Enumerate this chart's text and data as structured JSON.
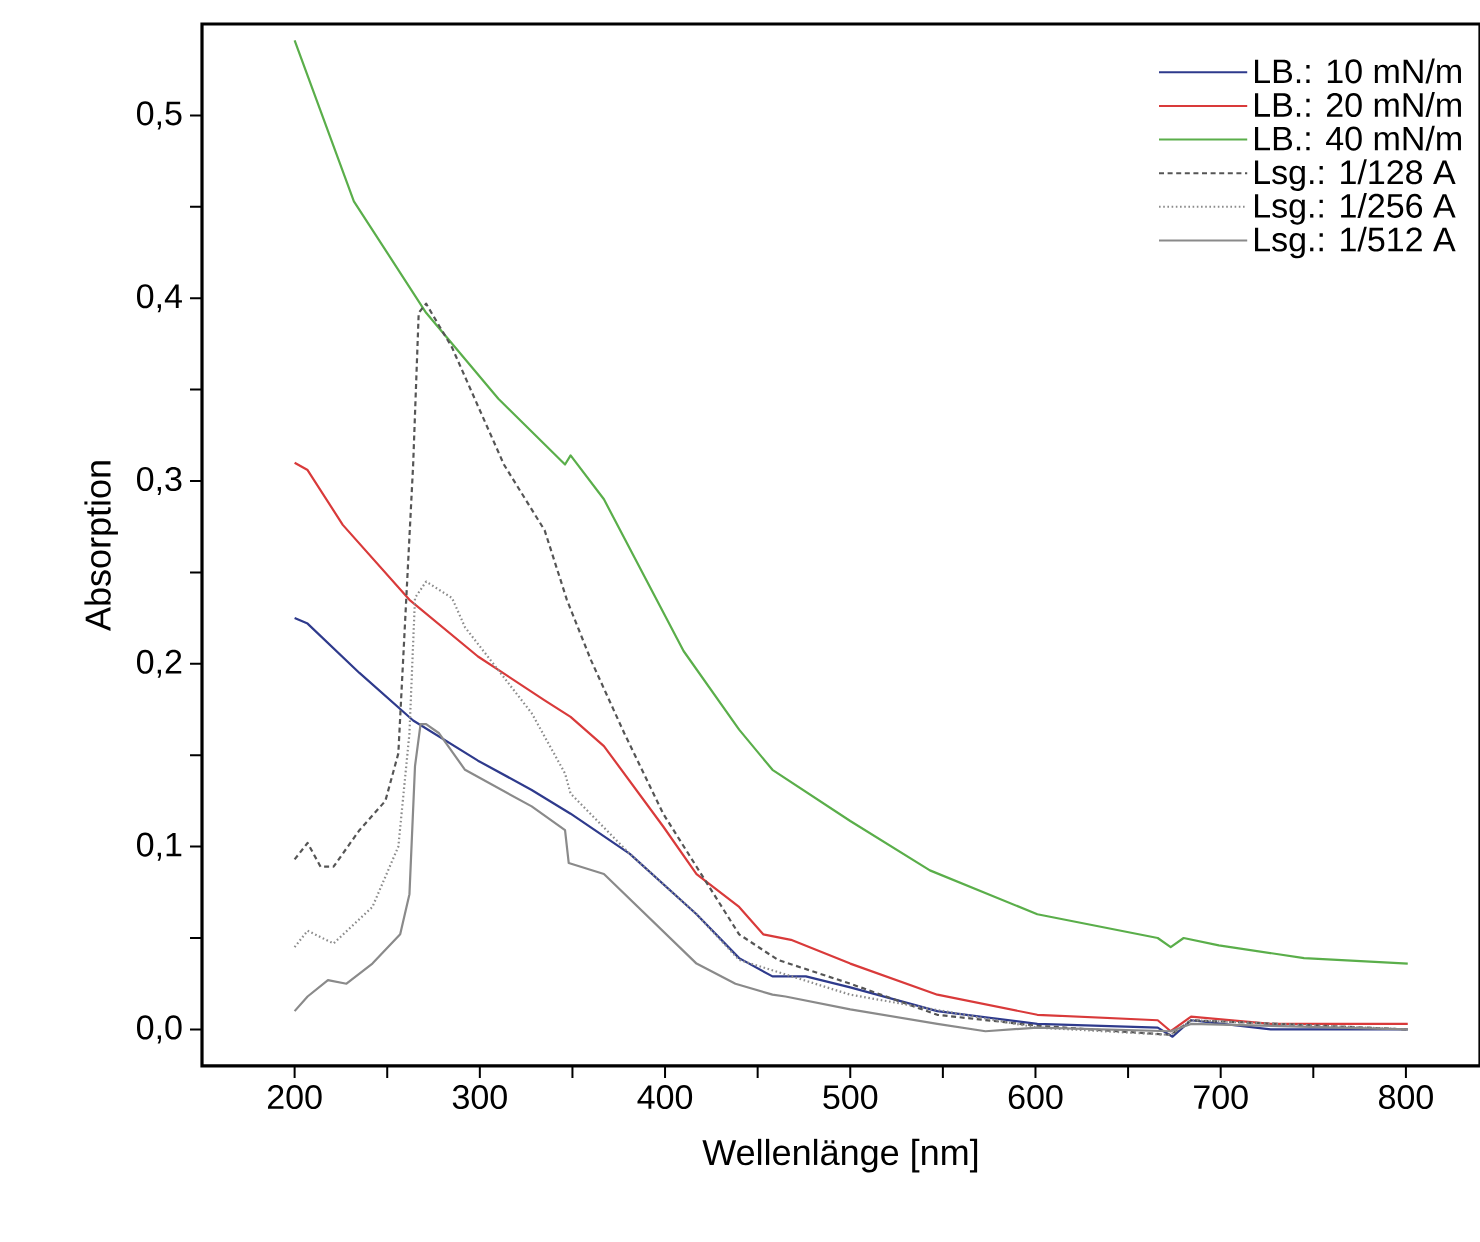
{
  "chart_data": {
    "type": "line",
    "xlabel": "Wellenlänge [nm]",
    "ylabel": "Absorption",
    "xlim": [
      150,
      840
    ],
    "ylim": [
      -0.02,
      0.55
    ],
    "xticks": [
      200,
      {
        "value": 250,
        "label": null
      },
      300,
      {
        "value": 350,
        "label": null
      },
      400,
      {
        "value": 450,
        "label": null
      },
      500,
      {
        "value": 550,
        "label": null
      },
      600,
      {
        "value": 650,
        "label": null
      },
      700,
      {
        "value": 750,
        "label": null
      },
      800
    ],
    "yticks": [
      {
        "value": 0,
        "label": "0,0"
      },
      {
        "value": 0.05,
        "label": null
      },
      {
        "value": 0.1,
        "label": "0,1"
      },
      {
        "value": 0.15,
        "label": null
      },
      {
        "value": 0.2,
        "label": "0,2"
      },
      {
        "value": 0.25,
        "label": null
      },
      {
        "value": 0.3,
        "label": "0,3"
      },
      {
        "value": 0.35,
        "label": null
      },
      {
        "value": 0.4,
        "label": "0,4"
      },
      {
        "value": 0.45,
        "label": null
      },
      {
        "value": 0.5,
        "label": "0,5"
      }
    ],
    "grid": false,
    "legend": "top right",
    "marker": "none",
    "series": [
      {
        "name": "LB.: 10 mN/m",
        "color": "#2e3a8c",
        "line_style": "solid",
        "x": [
          200,
          207,
          235,
          264,
          299,
          328,
          349,
          381,
          417,
          440,
          458,
          476,
          500,
          547,
          601,
          666,
          674,
          684,
          727,
          801
        ],
        "values": [
          0.225,
          0.222,
          0.195,
          0.169,
          0.147,
          0.131,
          0.118,
          0.096,
          0.063,
          0.039,
          0.029,
          0.029,
          0.023,
          0.01,
          0.003,
          0.001,
          -0.004,
          0.005,
          0.0,
          0.0
        ]
      },
      {
        "name": "LB.: 20 mN/m",
        "color": "#d93a3a",
        "line_style": "solid",
        "x": [
          200,
          207,
          226,
          262,
          299,
          335,
          349,
          367,
          399,
          417,
          440,
          453,
          468,
          500,
          547,
          601,
          666,
          673,
          684,
          727,
          801
        ],
        "values": [
          0.31,
          0.306,
          0.276,
          0.235,
          0.204,
          0.18,
          0.171,
          0.155,
          0.111,
          0.085,
          0.067,
          0.052,
          0.049,
          0.036,
          0.019,
          0.008,
          0.005,
          -0.001,
          0.007,
          0.003,
          0.003
        ]
      },
      {
        "name": "LB.: 40 mN/m",
        "color": "#5aae4a",
        "line_style": "solid",
        "x": [
          200,
          232,
          271,
          310,
          346,
          349,
          367,
          410,
          440,
          458,
          500,
          543,
          601,
          666,
          673,
          680,
          699,
          745,
          801
        ],
        "values": [
          0.541,
          0.453,
          0.392,
          0.345,
          0.309,
          0.314,
          0.29,
          0.207,
          0.164,
          0.142,
          0.114,
          0.087,
          0.063,
          0.05,
          0.045,
          0.05,
          0.046,
          0.039,
          0.036
        ]
      },
      {
        "name": "Lsg.: 1/128 A",
        "color": "#555555",
        "line_style": "dashed",
        "x": [
          200,
          207,
          214,
          221,
          235,
          249,
          256,
          264,
          267,
          271,
          285,
          313,
          335,
          347,
          360,
          378,
          399,
          417,
          440,
          461,
          500,
          547,
          601,
          673,
          684,
          801
        ],
        "values": [
          0.093,
          0.102,
          0.089,
          0.089,
          0.109,
          0.125,
          0.151,
          0.309,
          0.392,
          0.397,
          0.373,
          0.309,
          0.273,
          0.235,
          0.202,
          0.162,
          0.118,
          0.089,
          0.052,
          0.038,
          0.025,
          0.008,
          0.002,
          -0.003,
          0.005,
          0.0
        ]
      },
      {
        "name": "Lsg.: 1/256 A",
        "color": "#8c8c8c",
        "line_style": "dotted",
        "x": [
          200,
          207,
          221,
          242,
          256,
          262,
          265,
          271,
          285,
          292,
          328,
          346,
          349,
          381,
          417,
          440,
          500,
          601,
          673,
          684,
          801
        ],
        "values": [
          0.045,
          0.054,
          0.047,
          0.067,
          0.1,
          0.162,
          0.236,
          0.245,
          0.236,
          0.22,
          0.173,
          0.14,
          0.129,
          0.096,
          0.063,
          0.038,
          0.019,
          0.001,
          -0.003,
          0.005,
          0.0
        ]
      },
      {
        "name": "Lsg.: 1/512 A",
        "color": "#8a8a8a",
        "line_style": "solid",
        "x": [
          200,
          207,
          218,
          228,
          242,
          257,
          262,
          265,
          268,
          271,
          278,
          292,
          328,
          346,
          348,
          367,
          417,
          438,
          458,
          465,
          500,
          547,
          573,
          601,
          673,
          684,
          801
        ],
        "values": [
          0.01,
          0.018,
          0.027,
          0.025,
          0.036,
          0.052,
          0.074,
          0.144,
          0.167,
          0.167,
          0.162,
          0.142,
          0.122,
          0.109,
          0.091,
          0.085,
          0.036,
          0.025,
          0.019,
          0.018,
          0.011,
          0.003,
          -0.001,
          0.001,
          -0.001,
          0.003,
          0.0
        ]
      }
    ]
  }
}
